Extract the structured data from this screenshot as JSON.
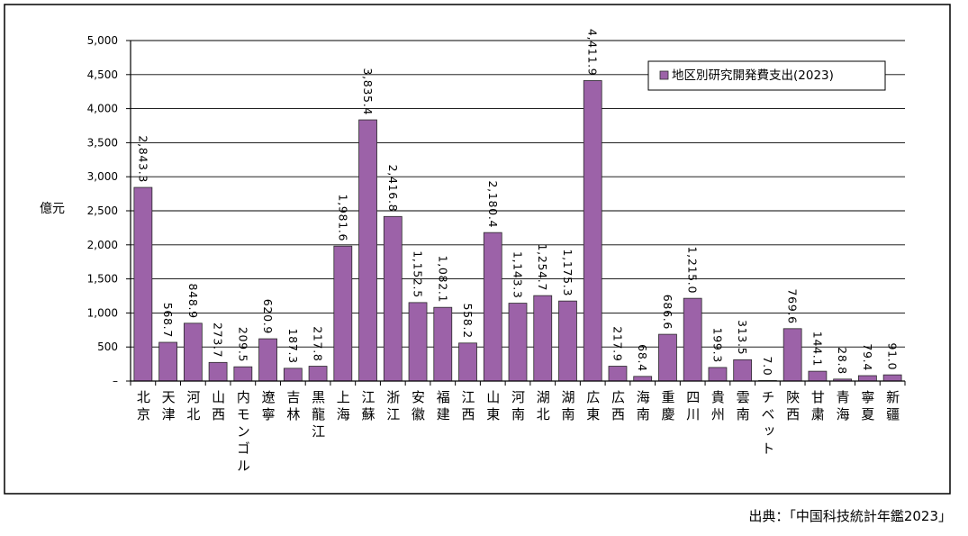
{
  "chart_data": {
    "type": "bar",
    "categories": [
      "北京",
      "天津",
      "河北",
      "山西",
      "内モンゴル",
      "遼寧",
      "吉林",
      "黒龍江",
      "上海",
      "江蘇",
      "浙江",
      "安徽",
      "福建",
      "江西",
      "山東",
      "河南",
      "湖北",
      "湖南",
      "広東",
      "広西",
      "海南",
      "重慶",
      "四川",
      "貴州",
      "雲南",
      "チベット",
      "陝西",
      "甘粛",
      "青海",
      "寧夏",
      "新疆"
    ],
    "series": [
      {
        "name": "地区別研究開発費支出(2023)",
        "values": [
          2843.3,
          568.7,
          848.9,
          273.7,
          209.5,
          620.9,
          187.3,
          217.8,
          1981.6,
          3835.4,
          2416.8,
          1152.5,
          1082.1,
          558.2,
          2180.4,
          1143.3,
          1254.7,
          1175.3,
          4411.9,
          217.9,
          68.4,
          686.6,
          1215.0,
          199.3,
          313.5,
          7.0,
          769.6,
          144.1,
          28.8,
          79.4,
          91.0
        ],
        "color": "#9c62a8"
      }
    ],
    "ylabel": "億元",
    "ylim": [
      0,
      5000
    ],
    "yticks": [
      0,
      500,
      1000,
      1500,
      2000,
      2500,
      3000,
      3500,
      4000,
      4500,
      5000
    ],
    "ytick_labels": [
      "–",
      "500",
      "1,000",
      "1,500",
      "2,000",
      "2,500",
      "3,000",
      "3,500",
      "4,000",
      "4,500",
      "5,000"
    ],
    "data_labels": true,
    "grid": true,
    "legend": "top-right"
  },
  "source": "出典：「中国科技統計年鑑2023」"
}
